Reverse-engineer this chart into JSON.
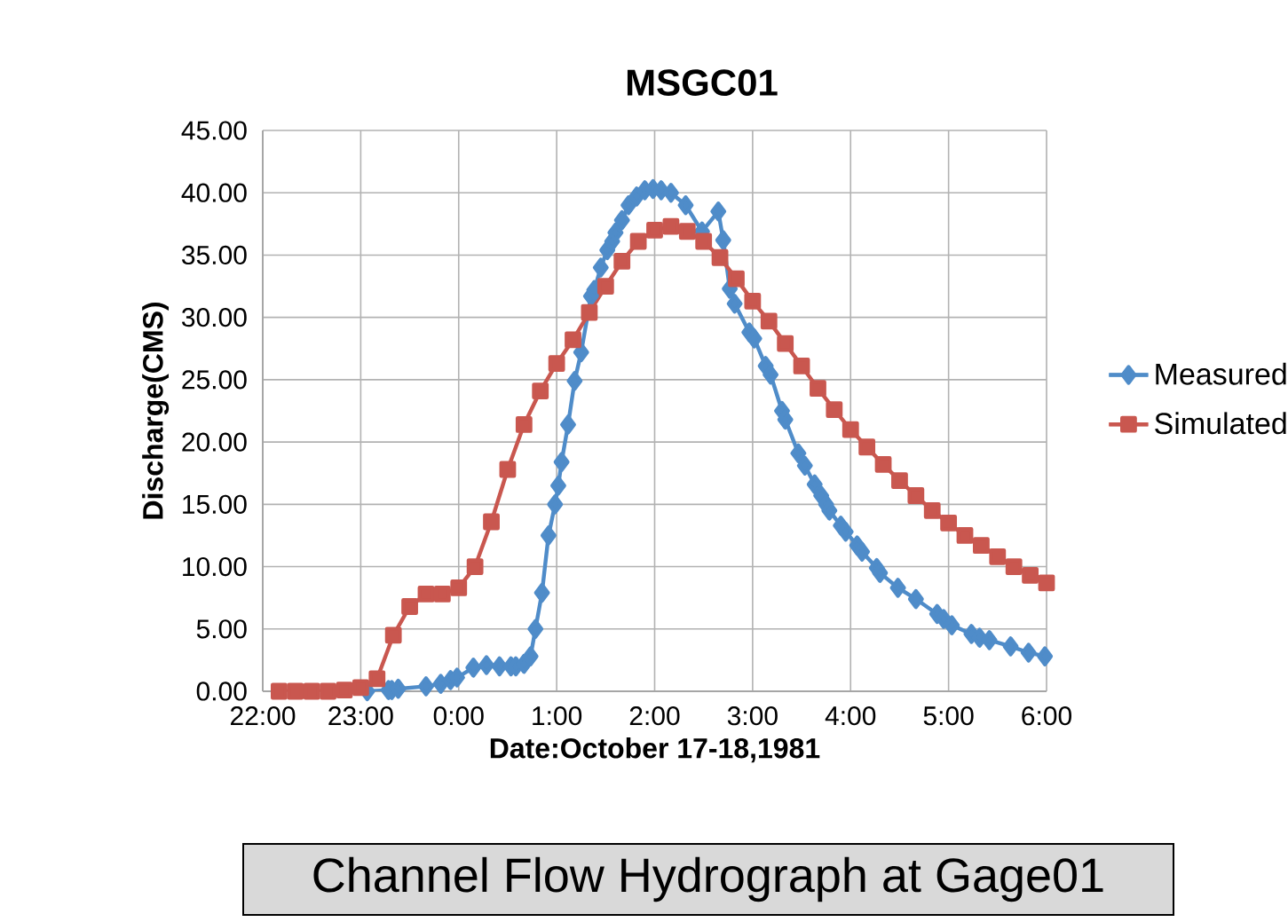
{
  "chart_data": {
    "type": "line",
    "title": "MSGC01",
    "xlabel": "Date:October 17-18,1981",
    "ylabel": "Discharge(CMS)",
    "annotations": [
      "Channel Flow Hydrograph at Gage01"
    ],
    "xlim": [
      "1981-10-17T22:00",
      "1981-10-18T06:00"
    ],
    "ylim": [
      0,
      45
    ],
    "xticks": [
      {
        "value": "1981-10-17T22:00",
        "label": "22:00"
      },
      {
        "value": "1981-10-17T23:00",
        "label": "23:00"
      },
      {
        "value": "1981-10-18T00:00",
        "label": "0:00"
      },
      {
        "value": "1981-10-18T01:00",
        "label": "1:00"
      },
      {
        "value": "1981-10-18T02:00",
        "label": "2:00"
      },
      {
        "value": "1981-10-18T03:00",
        "label": "3:00"
      },
      {
        "value": "1981-10-18T04:00",
        "label": "4:00"
      },
      {
        "value": "1981-10-18T05:00",
        "label": "5:00"
      },
      {
        "value": "1981-10-18T06:00",
        "label": "6:00"
      }
    ],
    "yticks": [
      {
        "value": 0,
        "label": "0.00"
      },
      {
        "value": 5,
        "label": "5.00"
      },
      {
        "value": 10,
        "label": "10.00"
      },
      {
        "value": 15,
        "label": "15.00"
      },
      {
        "value": 20,
        "label": "20.00"
      },
      {
        "value": 25,
        "label": "25.00"
      },
      {
        "value": 30,
        "label": "30.00"
      },
      {
        "value": 35,
        "label": "35.00"
      },
      {
        "value": 40,
        "label": "40.00"
      },
      {
        "value": 45,
        "label": "45.00"
      }
    ],
    "grid": true,
    "legend": "right",
    "line_style": "solid",
    "series": [
      {
        "name": "Measured",
        "color": "#4f8cc9",
        "marker": "diamond",
        "x": [
          "1981-10-17T23:04",
          "1981-10-17T23:17",
          "1981-10-17T23:19",
          "1981-10-17T23:23",
          "1981-10-17T23:40",
          "1981-10-17T23:49",
          "1981-10-17T23:55",
          "1981-10-17T23:59",
          "1981-10-18T00:09",
          "1981-10-18T00:17",
          "1981-10-18T00:25",
          "1981-10-18T00:32",
          "1981-10-18T00:35",
          "1981-10-18T00:40",
          "1981-10-18T00:44",
          "1981-10-18T00:47",
          "1981-10-18T00:51",
          "1981-10-18T00:55",
          "1981-10-18T00:59",
          "1981-10-18T01:01",
          "1981-10-18T01:03",
          "1981-10-18T01:07",
          "1981-10-18T01:11",
          "1981-10-18T01:15",
          "1981-10-18T01:21",
          "1981-10-18T01:23",
          "1981-10-18T01:27",
          "1981-10-18T01:31",
          "1981-10-18T01:34",
          "1981-10-18T01:36",
          "1981-10-18T01:40",
          "1981-10-18T01:44",
          "1981-10-18T01:49",
          "1981-10-18T01:54",
          "1981-10-18T01:59",
          "1981-10-18T02:04",
          "1981-10-18T02:10",
          "1981-10-18T02:19",
          "1981-10-18T02:29",
          "1981-10-18T02:39",
          "1981-10-18T02:42",
          "1981-10-18T02:46",
          "1981-10-18T02:49",
          "1981-10-18T02:58",
          "1981-10-18T03:01",
          "1981-10-18T03:08",
          "1981-10-18T03:11",
          "1981-10-18T03:18",
          "1981-10-18T03:20",
          "1981-10-18T03:28",
          "1981-10-18T03:32",
          "1981-10-18T03:38",
          "1981-10-18T03:42",
          "1981-10-18T03:45",
          "1981-10-18T03:47",
          "1981-10-18T03:54",
          "1981-10-18T03:57",
          "1981-10-18T04:04",
          "1981-10-18T04:07",
          "1981-10-18T04:16",
          "1981-10-18T04:18",
          "1981-10-18T04:29",
          "1981-10-18T04:40",
          "1981-10-18T04:53",
          "1981-10-18T04:57",
          "1981-10-18T05:02",
          "1981-10-18T05:14",
          "1981-10-18T05:19",
          "1981-10-18T05:25",
          "1981-10-18T05:38",
          "1981-10-18T05:49",
          "1981-10-18T05:59"
        ],
        "values": [
          0.0,
          0.1,
          0.1,
          0.2,
          0.4,
          0.6,
          0.9,
          1.1,
          1.9,
          2.1,
          2.0,
          2.0,
          2.0,
          2.2,
          2.8,
          5.0,
          7.9,
          12.5,
          15.0,
          16.5,
          18.4,
          21.4,
          24.9,
          27.2,
          31.7,
          32.2,
          34.0,
          35.4,
          36.1,
          36.8,
          37.8,
          39.0,
          39.7,
          40.2,
          40.3,
          40.2,
          40.0,
          39.0,
          36.9,
          38.5,
          36.2,
          32.3,
          31.1,
          28.8,
          28.3,
          26.1,
          25.4,
          22.5,
          21.8,
          19.1,
          18.1,
          16.6,
          15.7,
          15.0,
          14.5,
          13.3,
          12.8,
          11.7,
          11.2,
          9.9,
          9.5,
          8.3,
          7.4,
          6.2,
          5.8,
          5.3,
          4.6,
          4.3,
          4.1,
          3.6,
          3.1,
          2.8
        ]
      },
      {
        "name": "Simulated",
        "color": "#c9574f",
        "marker": "square",
        "x": [
          "1981-10-17T22:10",
          "1981-10-17T22:20",
          "1981-10-17T22:30",
          "1981-10-17T22:40",
          "1981-10-17T22:50",
          "1981-10-17T23:00",
          "1981-10-17T23:10",
          "1981-10-17T23:20",
          "1981-10-17T23:30",
          "1981-10-17T23:40",
          "1981-10-17T23:50",
          "1981-10-18T00:00",
          "1981-10-18T00:10",
          "1981-10-18T00:20",
          "1981-10-18T00:30",
          "1981-10-18T00:40",
          "1981-10-18T00:50",
          "1981-10-18T01:00",
          "1981-10-18T01:10",
          "1981-10-18T01:20",
          "1981-10-18T01:30",
          "1981-10-18T01:40",
          "1981-10-18T01:50",
          "1981-10-18T02:00",
          "1981-10-18T02:10",
          "1981-10-18T02:20",
          "1981-10-18T02:30",
          "1981-10-18T02:40",
          "1981-10-18T02:50",
          "1981-10-18T03:00",
          "1981-10-18T03:10",
          "1981-10-18T03:20",
          "1981-10-18T03:30",
          "1981-10-18T03:40",
          "1981-10-18T03:50",
          "1981-10-18T04:00",
          "1981-10-18T04:10",
          "1981-10-18T04:20",
          "1981-10-18T04:30",
          "1981-10-18T04:40",
          "1981-10-18T04:50",
          "1981-10-18T05:00",
          "1981-10-18T05:10",
          "1981-10-18T05:20",
          "1981-10-18T05:30",
          "1981-10-18T05:40",
          "1981-10-18T05:50",
          "1981-10-18T06:00"
        ],
        "values": [
          0.0,
          0.0,
          0.0,
          0.0,
          0.1,
          0.3,
          1.0,
          4.5,
          6.8,
          7.8,
          7.8,
          8.3,
          10.0,
          13.6,
          17.8,
          21.4,
          24.1,
          26.3,
          28.2,
          30.4,
          32.5,
          34.5,
          36.1,
          37.0,
          37.3,
          36.9,
          36.1,
          34.8,
          33.1,
          31.3,
          29.7,
          27.9,
          26.1,
          24.3,
          22.6,
          21.0,
          19.6,
          18.2,
          16.9,
          15.7,
          14.5,
          13.5,
          12.5,
          11.7,
          10.8,
          10.0,
          9.3,
          8.7
        ]
      }
    ]
  }
}
